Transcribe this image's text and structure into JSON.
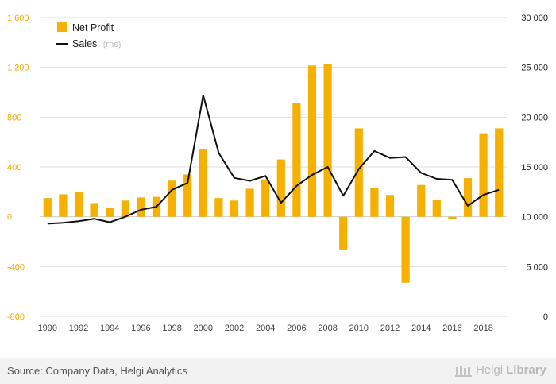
{
  "chart_data": {
    "type": "bar+line",
    "categories": [
      "1990",
      "1991",
      "1992",
      "1993",
      "1994",
      "1995",
      "1996",
      "1997",
      "1998",
      "1999",
      "2000",
      "2001",
      "2002",
      "2003",
      "2004",
      "2005",
      "2006",
      "2007",
      "2008",
      "2009",
      "2010",
      "2011",
      "2012",
      "2013",
      "2014",
      "2015",
      "2016",
      "2017",
      "2018",
      "2019"
    ],
    "series": [
      {
        "name": "Net Profit",
        "type": "bar",
        "axis": "left",
        "color": "#f5b000",
        "values": [
          150,
          180,
          200,
          110,
          70,
          130,
          155,
          160,
          290,
          340,
          540,
          150,
          130,
          225,
          300,
          460,
          915,
          1215,
          1225,
          -270,
          710,
          230,
          175,
          -530,
          255,
          135,
          -20,
          310,
          670,
          710
        ]
      },
      {
        "name": "Sales",
        "name_suffix": "(rhs)",
        "type": "line",
        "axis": "right",
        "color": "#111111",
        "values": [
          9300,
          9400,
          9550,
          9800,
          9450,
          10000,
          10700,
          11000,
          12700,
          13400,
          22200,
          16400,
          13900,
          13600,
          14100,
          11400,
          13100,
          14200,
          15000,
          12100,
          14800,
          16600,
          15900,
          16000,
          14400,
          13800,
          13700,
          11100,
          12200,
          12700
        ]
      }
    ],
    "left_axis": {
      "ylim": [
        -800,
        1600
      ],
      "ticks": [
        -800,
        -400,
        0,
        400,
        800,
        1200,
        1600
      ],
      "tick_labels": [
        "-800",
        "-400",
        "0",
        "400",
        "800",
        "1 200",
        "1 600"
      ]
    },
    "right_axis": {
      "ylim": [
        0,
        30000
      ],
      "ticks": [
        0,
        5000,
        10000,
        15000,
        20000,
        25000,
        30000
      ],
      "tick_labels": [
        "0",
        "5 000",
        "10 000",
        "15 000",
        "20 000",
        "25 000",
        "30 000"
      ]
    },
    "x_tick_labels": [
      "1990",
      "1992",
      "1994",
      "1996",
      "1998",
      "2000",
      "2002",
      "2004",
      "2006",
      "2008",
      "2010",
      "2012",
      "2014",
      "2016",
      "2018"
    ],
    "legend": [
      {
        "label": "Net Profit",
        "marker": "square",
        "color": "#f5b000"
      },
      {
        "label": "Sales",
        "sub": "(rhs)",
        "marker": "line",
        "color": "#111111"
      }
    ],
    "legend_position": "top-left",
    "grid": "horizontal",
    "title": "",
    "xlabel": "",
    "ylabel": ""
  },
  "footer": {
    "source": "Source: Company Data, Helgi Analytics",
    "brand_light": "Helgi",
    "brand_bold": "Library"
  },
  "colors": {
    "left_axis_text": "#f5a800",
    "grid": "#dddddd",
    "footer_bg": "#f2f2f2"
  }
}
